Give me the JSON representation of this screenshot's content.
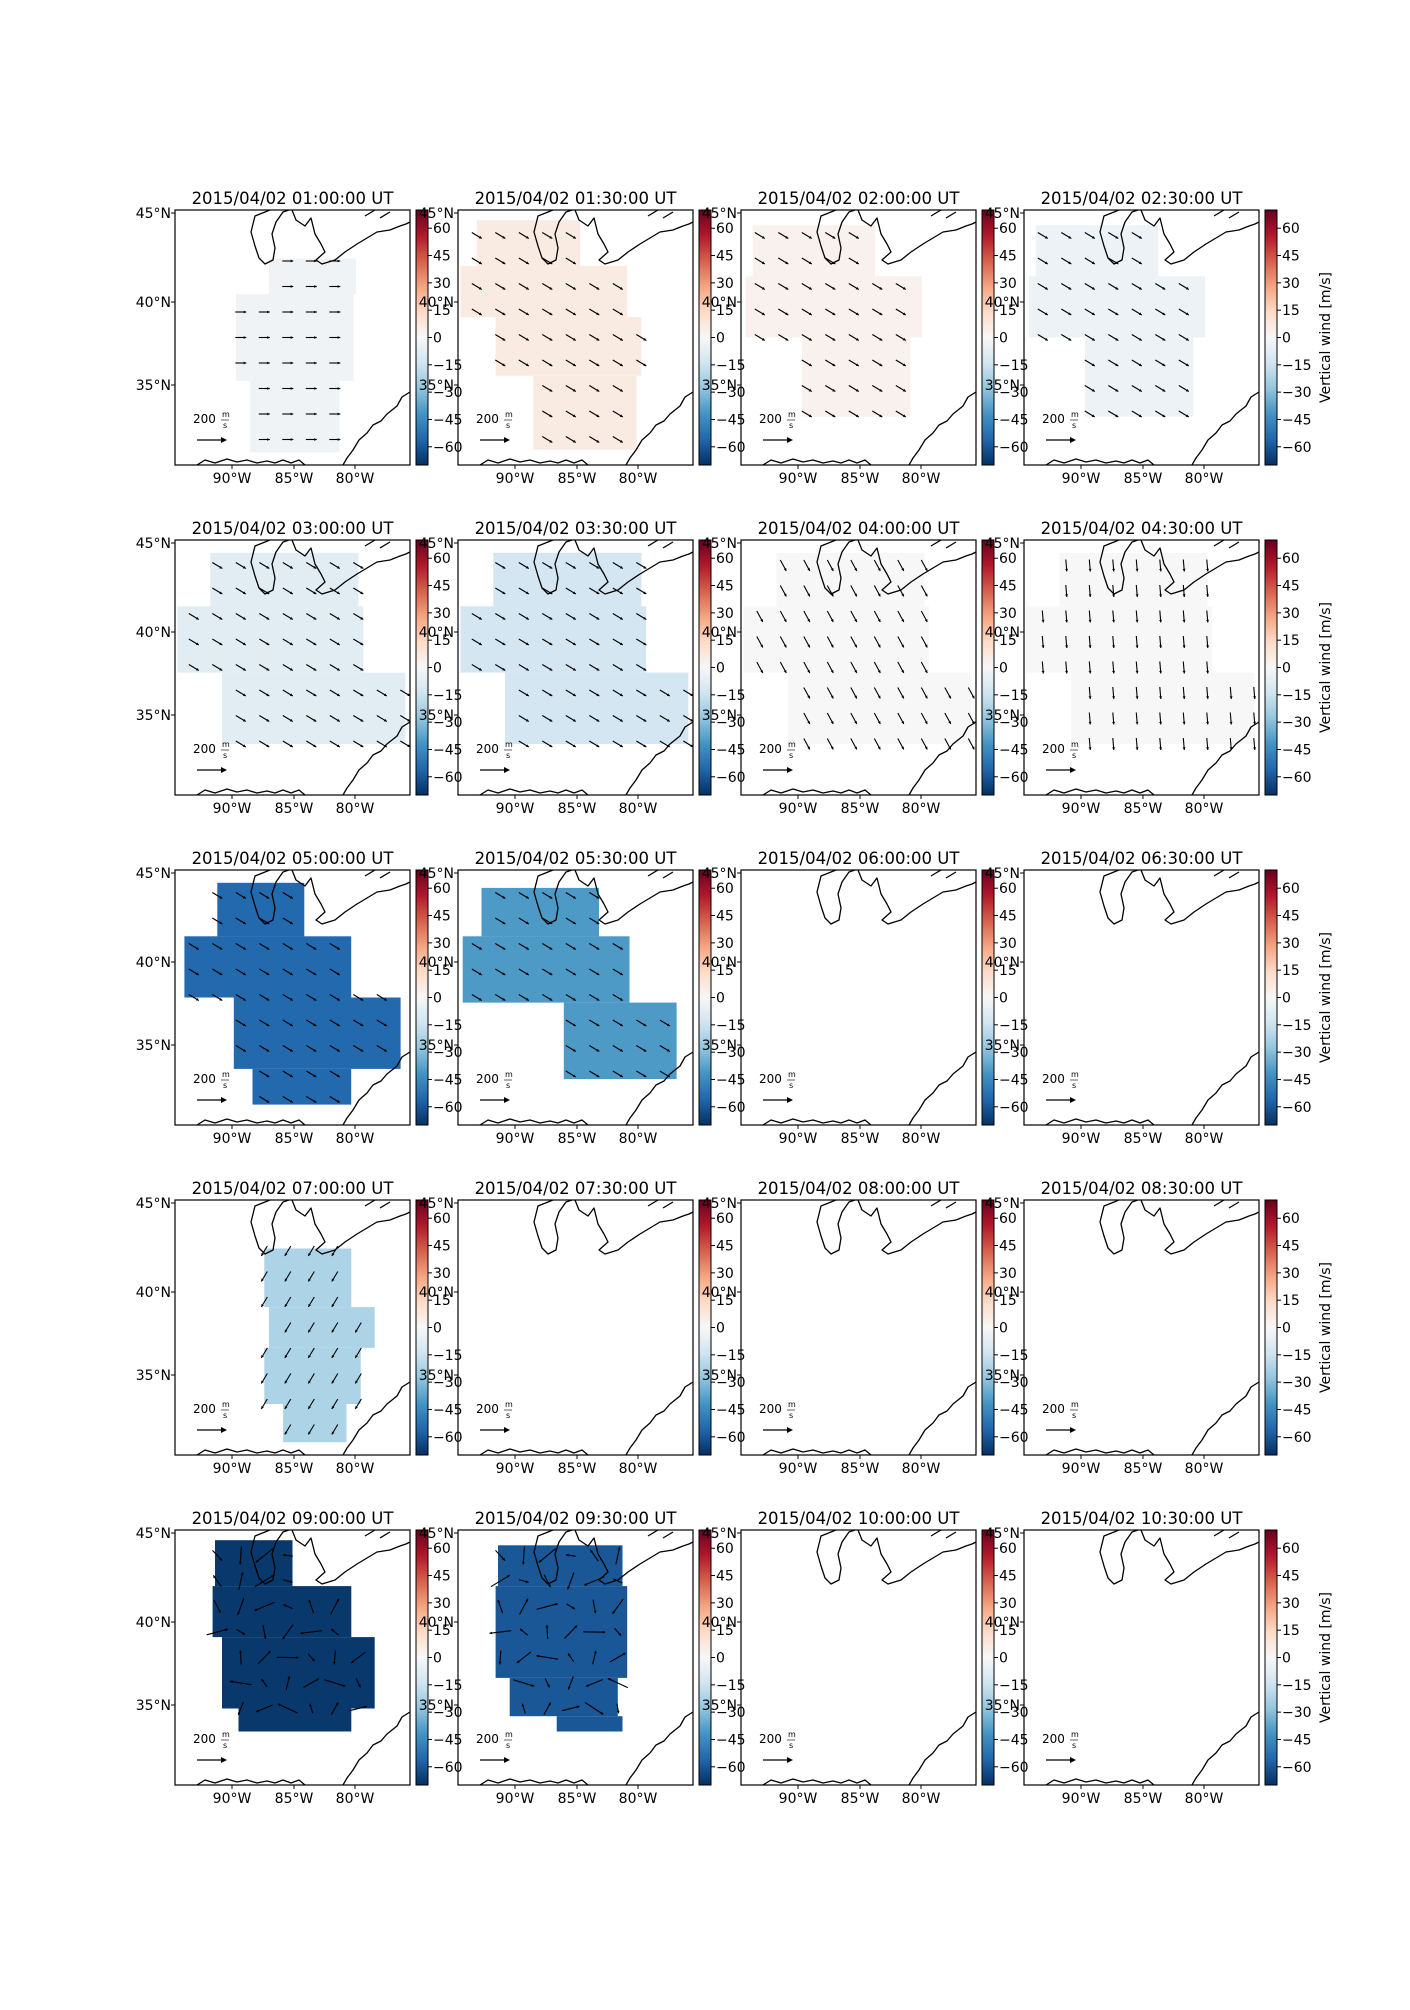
{
  "figure": {
    "colorbar_label": "Vertical wind [m/s]",
    "colorbar_ticks": [
      "60",
      "45",
      "30",
      "15",
      "0",
      "−15",
      "−30",
      "−45",
      "−60"
    ],
    "colorbar_range": [
      -70,
      70
    ],
    "colormap": [
      "#67001f",
      "#b2182b",
      "#d6604d",
      "#f4a582",
      "#fddbc7",
      "#f7f7f7",
      "#d1e5f0",
      "#92c5de",
      "#4393c3",
      "#2166ac",
      "#053061"
    ],
    "lat_ticks": [
      "45°N",
      "40°N",
      "35°N"
    ],
    "lon_ticks": [
      "90°W",
      "85°W",
      "80°W"
    ],
    "scale_label": "200",
    "scale_unit_num": "m",
    "scale_unit_den": "s"
  },
  "chart_data": {
    "type": "heatmap",
    "panels": [
      {
        "title": "2015/04/02 01:00:00 UT",
        "value": -3,
        "shape": "A",
        "arrow": "e"
      },
      {
        "title": "2015/04/02 01:30:00 UT",
        "value": 6,
        "shape": "B",
        "arrow": "se"
      },
      {
        "title": "2015/04/02 02:00:00 UT",
        "value": 3,
        "shape": "C",
        "arrow": "se"
      },
      {
        "title": "2015/04/02 02:30:00 UT",
        "value": -4,
        "shape": "C",
        "arrow": "se"
      },
      {
        "title": "2015/04/02 03:00:00 UT",
        "value": -8,
        "shape": "D",
        "arrow": "se"
      },
      {
        "title": "2015/04/02 03:30:00 UT",
        "value": -13,
        "shape": "D",
        "arrow": "se"
      },
      {
        "title": "2015/04/02 04:00:00 UT",
        "value": 0,
        "shape": "D",
        "arrow": "sse"
      },
      {
        "title": "2015/04/02 04:30:00 UT",
        "value": 0,
        "shape": "D",
        "arrow": "s"
      },
      {
        "title": "2015/04/02 05:00:00 UT",
        "value": -55,
        "shape": "E",
        "arrow": "se"
      },
      {
        "title": "2015/04/02 05:30:00 UT",
        "value": -40,
        "shape": "F",
        "arrow": "se"
      },
      {
        "title": "2015/04/02 06:00:00 UT",
        "value": null,
        "shape": null,
        "arrow": null
      },
      {
        "title": "2015/04/02 06:30:00 UT",
        "value": null,
        "shape": null,
        "arrow": null
      },
      {
        "title": "2015/04/02 07:00:00 UT",
        "value": -22,
        "shape": "G",
        "arrow": "sw"
      },
      {
        "title": "2015/04/02 07:30:00 UT",
        "value": null,
        "shape": null,
        "arrow": null
      },
      {
        "title": "2015/04/02 08:00:00 UT",
        "value": null,
        "shape": null,
        "arrow": null
      },
      {
        "title": "2015/04/02 08:30:00 UT",
        "value": null,
        "shape": null,
        "arrow": null
      },
      {
        "title": "2015/04/02 09:00:00 UT",
        "value": -68,
        "shape": "H",
        "arrow": "mixed"
      },
      {
        "title": "2015/04/02 09:30:00 UT",
        "value": -60,
        "shape": "I",
        "arrow": "mixed"
      },
      {
        "title": "2015/04/02 10:00:00 UT",
        "value": null,
        "shape": null,
        "arrow": null
      },
      {
        "title": "2015/04/02 10:30:00 UT",
        "value": null,
        "shape": null,
        "arrow": null
      }
    ]
  }
}
